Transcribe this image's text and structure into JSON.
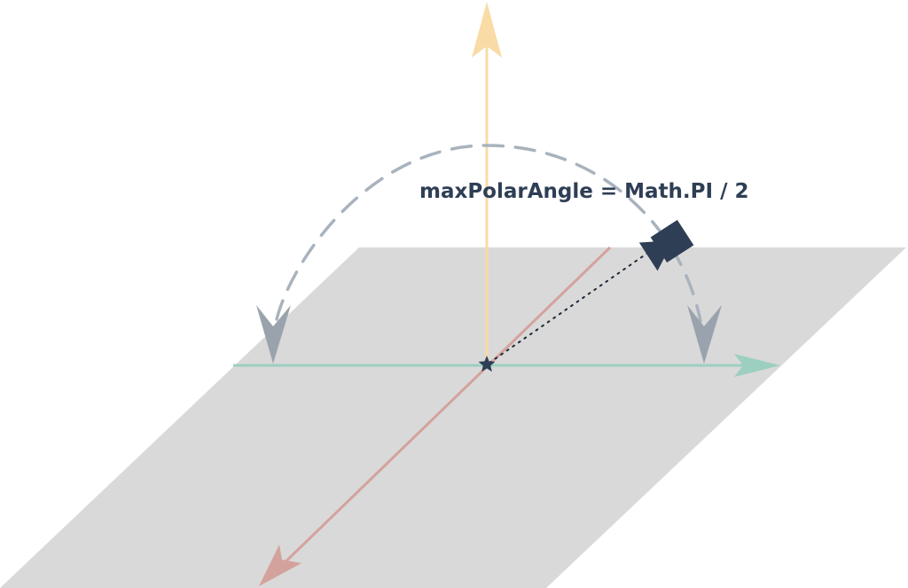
{
  "label": {
    "text": "maxPolarAngle = Math.PI / 2"
  },
  "colors": {
    "plane": "#d9d9d9",
    "up_axis": "#f9dba6",
    "x_axis": "#9ccfc0",
    "z_axis": "#d4a29c",
    "arc": "#a9b3bd",
    "arc_arrow": "#9aa3ad",
    "camera": "#2e3e55",
    "target": "#2e3e55",
    "label": "#2e3e55"
  },
  "icons": {
    "camera": "camera-icon",
    "target": "star-icon"
  }
}
